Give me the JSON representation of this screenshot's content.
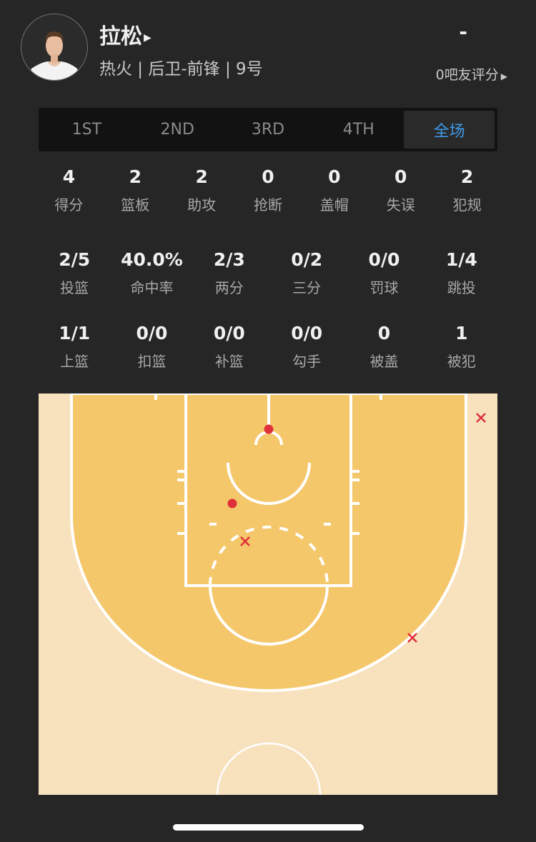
{
  "player": {
    "name": "拉松",
    "info": "热火 | 后卫-前锋 | 9号",
    "score": "-",
    "rating_label": "0吧友评分",
    "avatar_icon": "player-photo"
  },
  "tabs": [
    {
      "label": "1ST",
      "active": false
    },
    {
      "label": "2ND",
      "active": false
    },
    {
      "label": "3RD",
      "active": false
    },
    {
      "label": "4TH",
      "active": false
    },
    {
      "label": "全场",
      "active": true
    }
  ],
  "stats_row1": [
    {
      "value": "4",
      "label": "得分"
    },
    {
      "value": "2",
      "label": "篮板"
    },
    {
      "value": "2",
      "label": "助攻"
    },
    {
      "value": "0",
      "label": "抢断"
    },
    {
      "value": "0",
      "label": "盖帽"
    },
    {
      "value": "0",
      "label": "失误"
    },
    {
      "value": "2",
      "label": "犯规"
    }
  ],
  "stats_row2": [
    {
      "value": "2/5",
      "label": "投篮"
    },
    {
      "value": "40.0%",
      "label": "命中率"
    },
    {
      "value": "2/3",
      "label": "两分"
    },
    {
      "value": "0/2",
      "label": "三分"
    },
    {
      "value": "0/0",
      "label": "罚球"
    },
    {
      "value": "1/4",
      "label": "跳投"
    }
  ],
  "stats_row3": [
    {
      "value": "1/1",
      "label": "上篮"
    },
    {
      "value": "0/0",
      "label": "扣篮"
    },
    {
      "value": "0/0",
      "label": "补篮"
    },
    {
      "value": "0/0",
      "label": "勾手"
    },
    {
      "value": "0",
      "label": "被盖"
    },
    {
      "value": "1",
      "label": "被犯"
    }
  ],
  "shot_chart": {
    "shots": [
      {
        "result": "made"
      },
      {
        "result": "made"
      },
      {
        "result": "missed"
      },
      {
        "result": "missed"
      },
      {
        "result": "missed"
      }
    ],
    "colors": {
      "inside": "#f5c76b",
      "outside": "#f8e1bd",
      "lines": "#ffffff",
      "shot": "#e0303a",
      "accent": "#3d9be9"
    }
  }
}
